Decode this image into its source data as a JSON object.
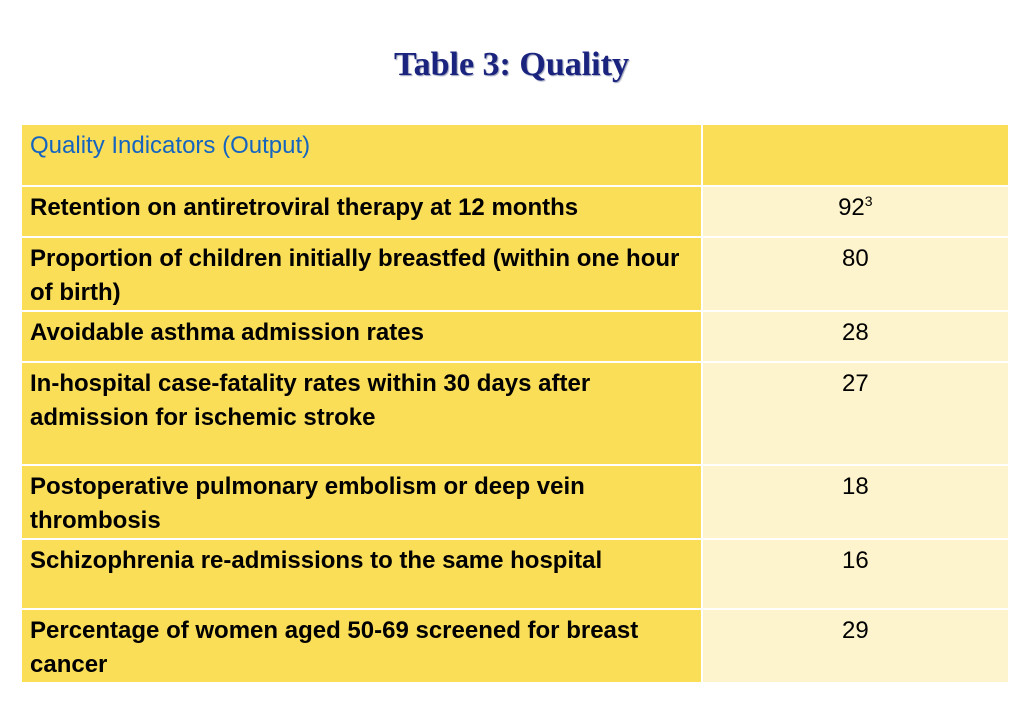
{
  "title": "Table 3: Quality",
  "colors": {
    "title": "#1a237e",
    "header_text": "#1565c0",
    "label_cell": "#fade58",
    "value_cell": "#fdf3cd"
  },
  "table": {
    "header": {
      "label": "Quality Indicators (Output)",
      "value": ""
    },
    "rows": [
      {
        "label": "Retention on antiretroviral therapy at 12 months",
        "value": "92",
        "sup": "3"
      },
      {
        "label": "Proportion of children initially breastfed (within one hour of birth)",
        "value": "80"
      },
      {
        "label": "Avoidable asthma admission rates",
        "value": "28"
      },
      {
        "label": "In-hospital case-fatality rates within 30 days after admission for ischemic stroke",
        "value": "27"
      },
      {
        "label": "Postoperative pulmonary embolism or deep vein thrombosis",
        "value": "18"
      },
      {
        "label": "Schizophrenia re-admissions to the same hospital",
        "value": "16"
      },
      {
        "label": "Percentage of women aged 50-69 screened for breast cancer",
        "value": "29"
      }
    ]
  }
}
